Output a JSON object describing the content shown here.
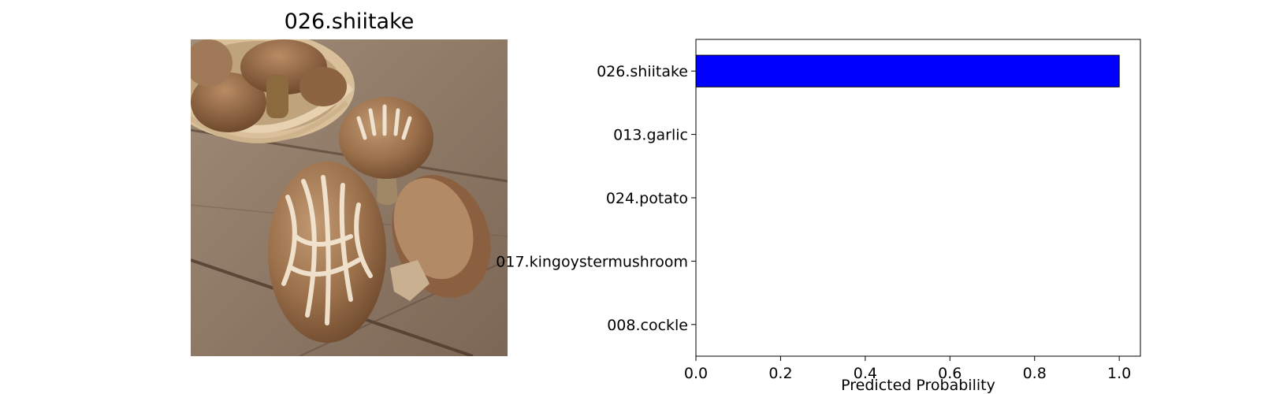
{
  "image_panel": {
    "title": "026.shiitake"
  },
  "chart_data": {
    "type": "bar",
    "orientation": "horizontal",
    "categories": [
      "026.shiitake",
      "013.garlic",
      "024.potato",
      "017.kingoystermushroom",
      "008.cockle"
    ],
    "values": [
      1.0,
      0.0,
      0.0,
      0.0,
      0.0
    ],
    "xlabel": "Predicted Probability",
    "ylabel": "",
    "xlim": [
      0,
      1.05
    ],
    "xticks": [
      0.0,
      0.2,
      0.4,
      0.6,
      0.8,
      1.0
    ],
    "xtick_labels": [
      "0.0",
      "0.2",
      "0.4",
      "0.6",
      "0.8",
      "1.0"
    ],
    "grid": false,
    "colors": {
      "bar": "#0000ff",
      "bar_edge": "#000000"
    }
  }
}
